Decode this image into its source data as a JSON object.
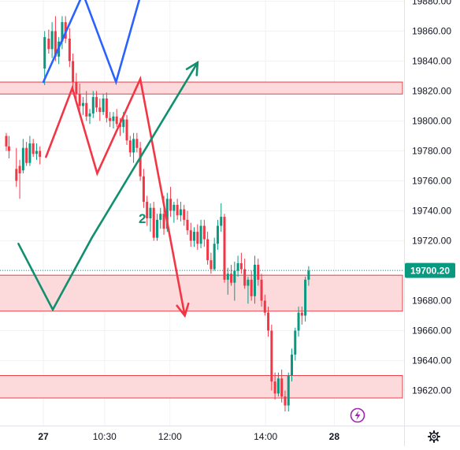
{
  "chart_data": {
    "type": "candlestick",
    "y_ticks": [
      19620,
      19640,
      19660,
      19680,
      19700,
      19720,
      19740,
      19760,
      19780,
      19800,
      19820,
      19840,
      19860,
      19880
    ],
    "y_tick_labels": [
      "19620.00",
      "19640.00",
      "19660.00",
      "19680.00",
      "19700.00",
      "19720.00",
      "19740.00",
      "19760.00",
      "19780.00",
      "19800.00",
      "19820.00",
      "19840.00",
      "19860.00",
      "19880.00"
    ],
    "ylim": [
      19606,
      19882
    ],
    "x_range": [
      0,
      49
    ],
    "x_ticks": [
      {
        "index": 5.5,
        "label": "27",
        "bold": true
      },
      {
        "index": 14.6,
        "label": "10:30",
        "bold": false
      },
      {
        "index": 24.3,
        "label": "12:00",
        "bold": false
      },
      {
        "index": 38.5,
        "label": "14:00",
        "bold": false
      },
      {
        "index": 48.7,
        "label": "28",
        "bold": true
      }
    ],
    "current_price": {
      "value": 19700.2,
      "label": "19700.20",
      "color": "#089981"
    },
    "colors": {
      "up": "#089981",
      "down": "#f23645",
      "zone_fill": "#fcd9db",
      "zone_stroke": "#e8434d",
      "blue_line": "#2962ff",
      "red_line": "#f23645",
      "green_line": "#10906f",
      "grid": "#f2f2f2"
    },
    "zones": [
      {
        "from": 19818,
        "to": 19826
      },
      {
        "from": 19673,
        "to": 19697
      },
      {
        "from": 19615,
        "to": 19630
      }
    ],
    "candles": [
      [
        0.0,
        19790,
        19792,
        19780,
        19783
      ],
      [
        0.4,
        19783,
        19790,
        19775,
        19780
      ],
      [
        1.5,
        19768,
        19782,
        19756,
        19760
      ],
      [
        2.0,
        19770,
        19774,
        19748,
        19765
      ],
      [
        2.5,
        19767,
        19788,
        19765,
        19782
      ],
      [
        3.0,
        19782,
        19786,
        19770,
        19772
      ],
      [
        3.5,
        19772,
        19790,
        19770,
        19785
      ],
      [
        4.0,
        19785,
        19788,
        19776,
        19778
      ],
      [
        4.5,
        19778,
        19785,
        19774,
        19780
      ],
      [
        5.0,
        19780,
        19783,
        19771,
        19776
      ],
      [
        5.7,
        19835,
        19860,
        19824,
        19856
      ],
      [
        6.3,
        19855,
        19861,
        19845,
        19848
      ],
      [
        6.8,
        19848,
        19866,
        19842,
        19860
      ],
      [
        7.3,
        19860,
        19870,
        19840,
        19843
      ],
      [
        7.8,
        19843,
        19856,
        19838,
        19853
      ],
      [
        8.3,
        19853,
        19870,
        19848,
        19866
      ],
      [
        8.8,
        19866,
        19870,
        19852,
        19855
      ],
      [
        9.4,
        19855,
        19862,
        19836,
        19840
      ],
      [
        9.9,
        19840,
        19845,
        19822,
        19826
      ],
      [
        10.4,
        19826,
        19832,
        19812,
        19818
      ],
      [
        10.9,
        19818,
        19825,
        19806,
        19810
      ],
      [
        11.4,
        19810,
        19816,
        19804,
        19812
      ],
      [
        11.9,
        19812,
        19820,
        19800,
        19803
      ],
      [
        12.4,
        19803,
        19808,
        19798,
        19805
      ],
      [
        12.9,
        19805,
        19820,
        19802,
        19816
      ],
      [
        13.4,
        19816,
        19820,
        19806,
        19809
      ],
      [
        13.9,
        19809,
        19815,
        19800,
        19806
      ],
      [
        14.4,
        19806,
        19818,
        19804,
        19815
      ],
      [
        14.9,
        19815,
        19819,
        19799,
        19802
      ],
      [
        15.4,
        19802,
        19806,
        19796,
        19800
      ],
      [
        15.9,
        19800,
        19806,
        19795,
        19803
      ],
      [
        16.4,
        19803,
        19808,
        19796,
        19798
      ],
      [
        16.9,
        19798,
        19802,
        19790,
        19796
      ],
      [
        17.4,
        19796,
        19806,
        19792,
        19801
      ],
      [
        17.9,
        19801,
        19804,
        19784,
        19787
      ],
      [
        18.4,
        19787,
        19790,
        19776,
        19779
      ],
      [
        18.9,
        19779,
        19792,
        19772,
        19788
      ],
      [
        19.4,
        19788,
        19792,
        19779,
        19782
      ],
      [
        19.9,
        19782,
        19786,
        19760,
        19763
      ],
      [
        20.4,
        19763,
        19768,
        19742,
        19746
      ],
      [
        20.9,
        19746,
        19750,
        19730,
        19735
      ],
      [
        21.4,
        19735,
        19745,
        19726,
        19742
      ],
      [
        21.9,
        19742,
        19746,
        19720,
        19722
      ],
      [
        22.4,
        19722,
        19738,
        19720,
        19734
      ],
      [
        22.9,
        19734,
        19742,
        19728,
        19738
      ],
      [
        23.4,
        19738,
        19750,
        19724,
        19728
      ],
      [
        23.9,
        19728,
        19752,
        19726,
        19748
      ],
      [
        24.4,
        19748,
        19756,
        19736,
        19740
      ],
      [
        24.9,
        19740,
        19746,
        19732,
        19744
      ],
      [
        25.4,
        19744,
        19748,
        19734,
        19737
      ],
      [
        25.9,
        19737,
        19746,
        19733,
        19741
      ],
      [
        26.4,
        19741,
        19744,
        19730,
        19734
      ],
      [
        26.9,
        19734,
        19740,
        19724,
        19727
      ],
      [
        27.4,
        19727,
        19732,
        19716,
        19720
      ],
      [
        27.9,
        19720,
        19729,
        19716,
        19726
      ],
      [
        28.4,
        19726,
        19731,
        19714,
        19718
      ],
      [
        28.9,
        19718,
        19734,
        19715,
        19730
      ],
      [
        29.4,
        19730,
        19734,
        19716,
        19721
      ],
      [
        29.9,
        19721,
        19726,
        19704,
        19707
      ],
      [
        30.4,
        19707,
        19712,
        19698,
        19701
      ],
      [
        30.9,
        19701,
        19722,
        19700,
        19718
      ],
      [
        31.4,
        19718,
        19734,
        19714,
        19730
      ],
      [
        31.9,
        19730,
        19745,
        19726,
        19736
      ],
      [
        32.4,
        19736,
        19738,
        19692,
        19694
      ],
      [
        32.9,
        19694,
        19702,
        19684,
        19698
      ],
      [
        33.4,
        19698,
        19704,
        19690,
        19692
      ],
      [
        33.9,
        19692,
        19706,
        19680,
        19700
      ],
      [
        34.4,
        19700,
        19710,
        19696,
        19705
      ],
      [
        34.9,
        19705,
        19712,
        19698,
        19701
      ],
      [
        35.4,
        19701,
        19708,
        19688,
        19690
      ],
      [
        35.9,
        19690,
        19696,
        19678,
        19694
      ],
      [
        36.4,
        19694,
        19700,
        19680,
        19683
      ],
      [
        36.9,
        19683,
        19710,
        19678,
        19704
      ],
      [
        37.4,
        19704,
        19708,
        19690,
        19694
      ],
      [
        37.9,
        19694,
        19698,
        19676,
        19680
      ],
      [
        38.4,
        19680,
        19684,
        19670,
        19672
      ],
      [
        38.9,
        19672,
        19676,
        19656,
        19660
      ],
      [
        39.4,
        19660,
        19664,
        19620,
        19626
      ],
      [
        39.9,
        19626,
        19632,
        19614,
        19618
      ],
      [
        40.4,
        19618,
        19632,
        19616,
        19628
      ],
      [
        40.9,
        19628,
        19634,
        19612,
        19616
      ],
      [
        41.4,
        19616,
        19620,
        19606,
        19610
      ],
      [
        41.9,
        19610,
        19632,
        19606,
        19630
      ],
      [
        42.4,
        19630,
        19648,
        19626,
        19644
      ],
      [
        42.9,
        19644,
        19662,
        19640,
        19660
      ],
      [
        43.4,
        19660,
        19676,
        19656,
        19672
      ],
      [
        43.9,
        19672,
        19676,
        19664,
        19670
      ],
      [
        44.4,
        19670,
        19696,
        19666,
        19694
      ],
      [
        44.9,
        19694,
        19703,
        19690,
        19700
      ]
    ],
    "lines": {
      "blue": [
        [
          5.5,
          19826
        ],
        [
          11.4,
          19885
        ],
        [
          16.3,
          19826
        ],
        [
          20.0,
          19885
        ]
      ],
      "red": [
        [
          5.9,
          19776
        ],
        [
          9.8,
          19822
        ],
        [
          13.5,
          19765
        ],
        [
          19.9,
          19828
        ],
        [
          26.5,
          19670
        ]
      ],
      "green": [
        [
          1.8,
          19718
        ],
        [
          6.9,
          19674
        ],
        [
          12.7,
          19722
        ],
        [
          28.4,
          19839
        ]
      ]
    },
    "drawing_label": "2"
  }
}
